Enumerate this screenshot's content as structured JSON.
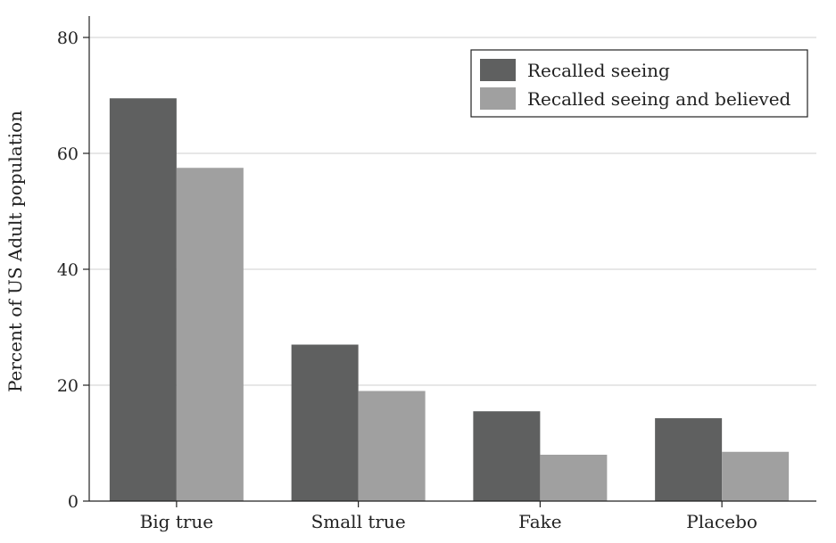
{
  "chart_data": {
    "type": "bar",
    "title": "",
    "xlabel": "",
    "ylabel": "Percent of US Adult population",
    "ylim": [
      0,
      80
    ],
    "yticks": [
      0,
      20,
      40,
      60,
      80
    ],
    "grid": true,
    "legend_position": "top-right",
    "categories": [
      "Big true",
      "Small true",
      "Fake",
      "Placebo"
    ],
    "series": [
      {
        "name": "Recalled seeing",
        "color": "#5f6060",
        "values": [
          69.5,
          27,
          15.5,
          14.3
        ]
      },
      {
        "name": "Recalled seeing and believed",
        "color": "#a0a0a0",
        "values": [
          57.5,
          19,
          8,
          8.5
        ]
      }
    ]
  }
}
